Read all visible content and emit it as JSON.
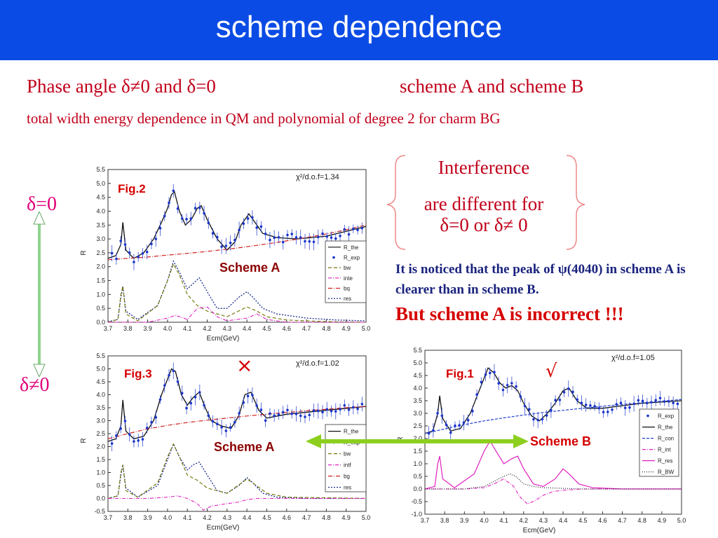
{
  "title": "scheme dependence",
  "subtitle_left": "Phase angle δ≠0 and δ=0",
  "subtitle_right": "scheme A and scheme B",
  "description": "total width energy dependence in QM and polynomial of degree 2 for charm BG",
  "delta_zero_label": "δ=0",
  "delta_nonzero_label": "δ≠0",
  "interference_box": {
    "line1": "Interference",
    "line2": "are different for",
    "line3": "δ=0 or δ≠ 0"
  },
  "note": "It is noticed that the peak of ψ(4040) in scheme A is clearer than in scheme B.",
  "warning": "But scheme A is  incorrect !!!",
  "colors": {
    "title_bar": "#0b4be5",
    "text_red": "#c0001a",
    "note_blue": "#1a237e",
    "warning_red": "#d50000",
    "delta_pink": "#e0007a",
    "arrow_green": "#8ccf1f"
  },
  "marks": {
    "cross": "×",
    "check": "√"
  },
  "chart_data": [
    {
      "type": "line",
      "figure": "Fig.2",
      "scheme": "Scheme A",
      "chi2": "χ²/d.o.f=1.34",
      "xlabel": "Ecm(GeV)",
      "ylabel": "R",
      "xlim": [
        3.7,
        5.0
      ],
      "ylim": [
        0.0,
        5.5
      ],
      "xticks": [
        "3.7",
        "3.8",
        "3.9",
        "4.0",
        "4.1",
        "4.2",
        "4.3",
        "4.4",
        "4.5",
        "4.6",
        "4.7",
        "4.8",
        "4.9",
        "5.0"
      ],
      "yticks": [
        "0.0",
        "0.5",
        "1.0",
        "1.5",
        "2.0",
        "2.5",
        "3.0",
        "3.5",
        "4.0",
        "4.5",
        "5.0",
        "5.5"
      ],
      "legend": [
        "R_the",
        "R_exp",
        "bw",
        "inte",
        "bq",
        "res"
      ],
      "series": [
        {
          "name": "R_the",
          "x": [
            3.7,
            3.74,
            3.765,
            3.775,
            3.79,
            3.83,
            3.88,
            3.93,
            3.97,
            4.0,
            4.02,
            4.035,
            4.06,
            4.09,
            4.12,
            4.15,
            4.17,
            4.2,
            4.25,
            4.3,
            4.34,
            4.37,
            4.41,
            4.44,
            4.48,
            4.55,
            4.65,
            4.8,
            5.0
          ],
          "y": [
            2.3,
            2.4,
            2.8,
            3.6,
            2.6,
            2.3,
            2.5,
            3.0,
            3.6,
            4.1,
            4.6,
            4.7,
            4.0,
            3.5,
            3.7,
            4.1,
            4.2,
            3.7,
            3.0,
            2.6,
            2.9,
            3.5,
            3.9,
            3.6,
            3.2,
            3.05,
            3.0,
            3.1,
            3.45
          ]
        },
        {
          "name": "bq",
          "x": [
            3.7,
            3.8,
            3.9,
            4.0,
            4.1,
            4.2,
            4.3,
            4.4,
            4.5,
            4.6,
            4.7,
            4.8,
            4.9,
            5.0
          ],
          "y": [
            2.25,
            2.3,
            2.35,
            2.42,
            2.48,
            2.55,
            2.63,
            2.72,
            2.82,
            2.93,
            3.05,
            3.18,
            3.33,
            3.5
          ]
        },
        {
          "name": "res",
          "x": [
            3.7,
            3.75,
            3.765,
            3.775,
            3.79,
            3.85,
            3.95,
            4.0,
            4.03,
            4.06,
            4.1,
            4.13,
            4.16,
            4.2,
            4.25,
            4.3,
            4.36,
            4.4,
            4.43,
            4.48,
            4.55,
            4.7,
            4.85,
            5.0
          ],
          "y": [
            0.02,
            0.1,
            0.9,
            1.3,
            0.4,
            0.1,
            0.6,
            1.5,
            2.2,
            1.8,
            1.2,
            1.4,
            1.6,
            1.1,
            0.5,
            0.5,
            0.9,
            1.1,
            0.9,
            0.5,
            0.3,
            0.15,
            0.08,
            0.05
          ]
        },
        {
          "name": "bw",
          "x": [
            3.7,
            3.75,
            3.765,
            3.775,
            3.79,
            3.85,
            3.95,
            4.0,
            4.03,
            4.06,
            4.1,
            4.15,
            4.2,
            4.3,
            4.4,
            4.45,
            4.5,
            4.6,
            4.8,
            5.0
          ],
          "y": [
            0.0,
            0.1,
            1.0,
            1.3,
            0.3,
            0.05,
            0.6,
            1.5,
            2.1,
            1.7,
            1.0,
            0.6,
            0.4,
            0.2,
            0.55,
            0.4,
            0.2,
            0.08,
            0.02,
            0.0
          ]
        },
        {
          "name": "inte",
          "x": [
            3.7,
            3.9,
            4.0,
            4.04,
            4.1,
            4.15,
            4.2,
            4.25,
            4.3,
            4.4,
            4.45,
            4.5,
            4.6,
            5.0
          ],
          "y": [
            0.0,
            0.0,
            0.15,
            0.25,
            0.1,
            0.5,
            0.55,
            0.2,
            0.05,
            0.15,
            0.3,
            0.1,
            0.0,
            0.0
          ]
        }
      ]
    },
    {
      "type": "line",
      "figure": "Fig.3",
      "scheme": "Scheme A",
      "chi2": "χ²/d.o.f=1.02",
      "xlabel": "Ecm(GeV)",
      "ylabel": "R",
      "xlim": [
        3.7,
        5.0
      ],
      "ylim": [
        -0.5,
        5.5
      ],
      "xticks": [
        "3.7",
        "3.8",
        "3.9",
        "4.0",
        "4.1",
        "4.2",
        "4.3",
        "4.4",
        "4.5",
        "4.6",
        "4.7",
        "4.8",
        "4.9",
        "5.0"
      ],
      "yticks": [
        "-0.5",
        "0.0",
        "0.5",
        "1.0",
        "1.5",
        "2.0",
        "2.5",
        "3.0",
        "3.5",
        "4.0",
        "4.5",
        "5.0",
        "5.5"
      ],
      "legend": [
        "R_the",
        "R_exp",
        "bw",
        "intf",
        "bg",
        "res"
      ],
      "series": [
        {
          "name": "R_the",
          "x": [
            3.7,
            3.74,
            3.765,
            3.775,
            3.79,
            3.83,
            3.88,
            3.93,
            3.97,
            4.0,
            4.02,
            4.04,
            4.07,
            4.1,
            4.13,
            4.16,
            4.19,
            4.22,
            4.27,
            4.32,
            4.36,
            4.39,
            4.42,
            4.46,
            4.5,
            4.6,
            4.8,
            5.0
          ],
          "y": [
            2.2,
            2.3,
            2.8,
            3.8,
            2.6,
            2.3,
            2.4,
            3.0,
            4.0,
            4.6,
            5.0,
            4.9,
            4.0,
            3.6,
            3.9,
            4.1,
            3.5,
            3.0,
            2.8,
            2.7,
            3.2,
            4.0,
            4.1,
            3.4,
            3.1,
            3.25,
            3.4,
            3.55
          ]
        },
        {
          "name": "bg",
          "x": [
            3.7,
            3.8,
            3.9,
            4.0,
            4.1,
            4.2,
            4.3,
            4.4,
            4.5,
            4.6,
            4.7,
            4.8,
            4.9,
            5.0
          ],
          "y": [
            2.3,
            2.5,
            2.68,
            2.82,
            2.93,
            3.02,
            3.1,
            3.18,
            3.25,
            3.32,
            3.38,
            3.44,
            3.5,
            3.55
          ]
        },
        {
          "name": "res",
          "x": [
            3.7,
            3.75,
            3.765,
            3.775,
            3.79,
            3.85,
            3.95,
            4.0,
            4.03,
            4.06,
            4.1,
            4.13,
            4.16,
            4.2,
            4.25,
            4.3,
            4.36,
            4.4,
            4.43,
            4.48,
            4.55,
            4.7,
            5.0
          ],
          "y": [
            0.0,
            0.1,
            0.9,
            1.3,
            0.4,
            0.05,
            0.5,
            1.5,
            2.1,
            1.6,
            1.1,
            1.3,
            1.4,
            0.9,
            0.3,
            0.2,
            0.5,
            0.8,
            0.6,
            0.2,
            0.05,
            0.0,
            0.0
          ]
        },
        {
          "name": "bw",
          "x": [
            3.7,
            3.75,
            3.765,
            3.775,
            3.79,
            3.85,
            3.95,
            4.0,
            4.03,
            4.06,
            4.1,
            4.15,
            4.2,
            4.3,
            4.4,
            4.43,
            4.5,
            4.6,
            5.0
          ],
          "y": [
            0.0,
            0.1,
            1.0,
            1.3,
            0.3,
            0.05,
            0.6,
            1.6,
            2.1,
            1.6,
            0.9,
            0.7,
            0.4,
            0.2,
            0.75,
            0.6,
            0.2,
            0.05,
            0.0
          ]
        },
        {
          "name": "intf",
          "x": [
            3.7,
            3.9,
            4.0,
            4.05,
            4.1,
            4.15,
            4.18,
            4.22,
            4.3,
            4.35,
            4.4,
            4.45,
            4.5,
            5.0
          ],
          "y": [
            0.0,
            0.0,
            0.05,
            0.1,
            0.0,
            -0.2,
            -0.45,
            -0.3,
            -0.2,
            -0.15,
            -0.05,
            0.0,
            0.0,
            0.0
          ]
        }
      ]
    },
    {
      "type": "line",
      "figure": "Fig.1",
      "scheme": "Scheme B",
      "chi2": "χ²/d.o.f=1.05",
      "xlabel": "Ecm(GeV)",
      "ylabel": "R",
      "xlim": [
        3.7,
        5.0
      ],
      "ylim": [
        -1.0,
        5.5
      ],
      "xticks": [
        "3.7",
        "3.8",
        "3.9",
        "4.0",
        "4.1",
        "4.2",
        "4.3",
        "4.4",
        "4.5",
        "4.6",
        "4.7",
        "4.8",
        "4.9",
        "5.0"
      ],
      "yticks": [
        "-1.0",
        "-0.5",
        "0.0",
        "0.5",
        "1.0",
        "1.5",
        "2.0",
        "2.5",
        "3.0",
        "3.5",
        "4.0",
        "4.5",
        "5.0",
        "5.5"
      ],
      "legend": [
        "R_exp",
        "R_the",
        "R_con",
        "R_int",
        "R_res",
        "R_BW"
      ],
      "series": [
        {
          "name": "R_the",
          "x": [
            3.7,
            3.74,
            3.765,
            3.775,
            3.79,
            3.83,
            3.88,
            3.93,
            3.97,
            4.0,
            4.02,
            4.05,
            4.08,
            4.11,
            4.14,
            4.17,
            4.2,
            4.24,
            4.28,
            4.32,
            4.36,
            4.4,
            4.43,
            4.47,
            4.52,
            4.6,
            4.8,
            5.0
          ],
          "y": [
            2.2,
            2.3,
            3.0,
            3.7,
            2.8,
            2.3,
            2.4,
            3.0,
            3.8,
            4.4,
            4.8,
            4.6,
            4.2,
            4.0,
            4.1,
            3.9,
            3.4,
            2.9,
            2.7,
            3.0,
            3.4,
            3.9,
            4.0,
            3.5,
            3.2,
            3.2,
            3.4,
            3.5
          ]
        },
        {
          "name": "R_con",
          "x": [
            3.7,
            3.8,
            3.9,
            4.0,
            4.1,
            4.2,
            4.3,
            4.4,
            4.5,
            4.6,
            4.7,
            4.8,
            4.9,
            5.0
          ],
          "y": [
            2.2,
            2.38,
            2.55,
            2.7,
            2.82,
            2.93,
            3.03,
            3.12,
            3.2,
            3.28,
            3.35,
            3.42,
            3.48,
            3.55
          ]
        },
        {
          "name": "R_res",
          "x": [
            3.7,
            3.75,
            3.765,
            3.775,
            3.79,
            3.85,
            3.95,
            4.0,
            4.03,
            4.06,
            4.1,
            4.14,
            4.17,
            4.2,
            4.25,
            4.3,
            4.36,
            4.4,
            4.43,
            4.48,
            4.55,
            4.7,
            5.0
          ],
          "y": [
            0.0,
            0.1,
            1.0,
            1.3,
            0.4,
            0.05,
            0.6,
            1.5,
            1.9,
            1.5,
            1.0,
            1.2,
            1.3,
            0.8,
            0.2,
            0.1,
            0.4,
            0.8,
            0.6,
            0.2,
            0.05,
            0.0,
            0.0
          ]
        },
        {
          "name": "R_int",
          "x": [
            3.7,
            3.9,
            4.0,
            4.05,
            4.1,
            4.15,
            4.18,
            4.22,
            4.26,
            4.3,
            4.35,
            4.4,
            4.5,
            5.0
          ],
          "y": [
            0.0,
            0.0,
            0.05,
            0.2,
            0.4,
            0.1,
            -0.3,
            -0.6,
            -0.45,
            -0.25,
            -0.1,
            -0.05,
            0.0,
            0.0
          ]
        },
        {
          "name": "R_BW",
          "x": [
            3.7,
            3.9,
            4.0,
            4.05,
            4.1,
            4.13,
            4.16,
            4.2,
            4.25,
            4.3,
            4.5,
            5.0
          ],
          "y": [
            0.0,
            0.0,
            0.1,
            0.3,
            0.5,
            0.6,
            0.5,
            0.2,
            0.1,
            0.05,
            0.0,
            0.0
          ]
        }
      ]
    }
  ]
}
